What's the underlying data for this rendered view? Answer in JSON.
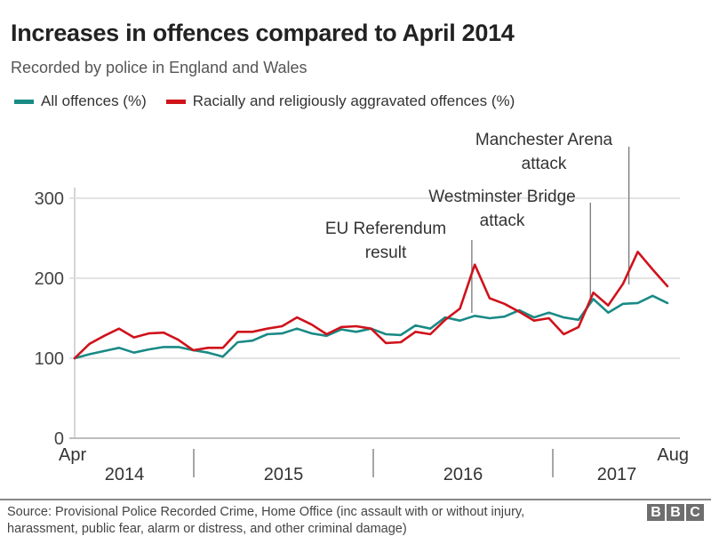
{
  "chart_data": {
    "type": "line",
    "title": "Increases in offences compared to April 2014",
    "subtitle": "Recorded by police in England and Wales",
    "xlabel": "",
    "ylabel": "",
    "ylim": [
      0,
      300
    ],
    "yticks": [
      "0",
      "100",
      "200",
      "300"
    ],
    "grid": true,
    "legend_position": "top-left",
    "x_start_label": "Apr",
    "x_end_label": "Aug",
    "year_labels": [
      "2014",
      "2015",
      "2016",
      "2017"
    ],
    "x": [
      "Apr 2014",
      "May 2014",
      "Jun 2014",
      "Jul 2014",
      "Aug 2014",
      "Sep 2014",
      "Oct 2014",
      "Nov 2014",
      "Dec 2014",
      "Jan 2015",
      "Feb 2015",
      "Mar 2015",
      "Apr 2015",
      "May 2015",
      "Jun 2015",
      "Jul 2015",
      "Aug 2015",
      "Sep 2015",
      "Oct 2015",
      "Nov 2015",
      "Dec 2015",
      "Jan 2016",
      "Feb 2016",
      "Mar 2016",
      "Apr 2016",
      "May 2016",
      "Jun 2016",
      "Jul 2016",
      "Aug 2016",
      "Sep 2016",
      "Oct 2016",
      "Nov 2016",
      "Dec 2016",
      "Jan 2017",
      "Feb 2017",
      "Mar 2017",
      "Apr 2017",
      "May 2017",
      "Jun 2017",
      "Jul 2017",
      "Aug 2017"
    ],
    "series": [
      {
        "name": "All offences (%)",
        "color": "#1a8a85",
        "values": [
          100,
          105,
          109,
          113,
          107,
          111,
          114,
          114,
          110,
          107,
          102,
          120,
          122,
          130,
          131,
          137,
          131,
          128,
          136,
          133,
          137,
          130,
          129,
          141,
          137,
          151,
          147,
          153,
          150,
          152,
          160,
          151,
          157,
          151,
          148,
          174,
          157,
          168,
          169,
          178,
          169
        ]
      },
      {
        "name": "Racially and religiously aggravated offences (%)",
        "color": "#d0121b",
        "values": [
          100,
          118,
          128,
          137,
          126,
          131,
          132,
          123,
          110,
          113,
          113,
          133,
          133,
          137,
          140,
          151,
          142,
          130,
          139,
          140,
          137,
          119,
          120,
          133,
          130,
          148,
          162,
          217,
          175,
          168,
          158,
          147,
          150,
          130,
          139,
          182,
          166,
          193,
          233,
          211,
          190
        ]
      }
    ],
    "annotations": [
      {
        "line1": "EU Referendum",
        "line2": "result",
        "x_index": 26.8
      },
      {
        "line1": "Westminster Bridge",
        "line2": "attack",
        "x_index": 34.8
      },
      {
        "line1": "Manchester Arena",
        "line2": "attack",
        "x_index": 37.4
      }
    ]
  },
  "source": {
    "line1": "Source: Provisional Police Recorded Crime, Home Office (inc assault with or without injury,",
    "line2": "harassment, public fear, alarm or distress, and other criminal damage)"
  },
  "logo": [
    "B",
    "B",
    "C"
  ]
}
